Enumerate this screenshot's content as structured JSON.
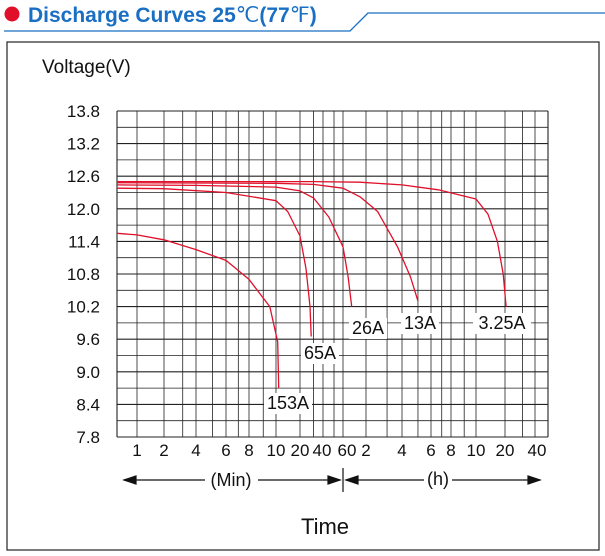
{
  "header": {
    "title": "Discharge Curves 25",
    "unit_c": "℃",
    "open_paren": "(",
    "temp_f": "77",
    "unit_f": "℉",
    "close_paren": ")",
    "accent_color": "#1a6fc4",
    "bullet_color": "#e0102a"
  },
  "chart_data": {
    "type": "line",
    "title": "Discharge Curves 25℃(77℉)",
    "ylabel": "Voltage(V)",
    "xlabel": "Time",
    "ylim": [
      7.8,
      13.8
    ],
    "y_ticks": [
      "13.8",
      "13.2",
      "12.6",
      "12.0",
      "11.4",
      "10.8",
      "10.2",
      "9.6",
      "9.0",
      "8.4",
      "7.8"
    ],
    "x_scale": "log",
    "x_ticks_min": [
      "1",
      "2",
      "4",
      "6",
      "8",
      "10",
      "20",
      "40",
      "60"
    ],
    "x_ticks_h": [
      "2",
      "4",
      "6",
      "8",
      "10",
      "20",
      "40"
    ],
    "x_unit_min": "(Min)",
    "x_unit_h": "(h)",
    "grid": true,
    "line_color": "#e0102a",
    "series": [
      {
        "name": "153A",
        "x_min": [
          0.25,
          1,
          2,
          4,
          6,
          8,
          9.5,
          10.5,
          10.8
        ],
        "y": [
          11.55,
          11.52,
          11.43,
          11.25,
          11.05,
          10.7,
          10.2,
          9.55,
          8.7
        ]
      },
      {
        "name": "65A",
        "x_min": [
          0.25,
          2,
          6,
          10,
          14,
          20,
          24,
          27,
          28
        ],
        "y": [
          12.38,
          12.37,
          12.3,
          12.15,
          11.95,
          11.5,
          10.9,
          10.2,
          9.65
        ]
      },
      {
        "name": "26A",
        "x_min": [
          0.25,
          4,
          10,
          20,
          30,
          45,
          60,
          70,
          78
        ],
        "y": [
          12.44,
          12.43,
          12.4,
          12.33,
          12.2,
          11.85,
          11.3,
          10.75,
          10.2
        ]
      },
      {
        "name": "13A",
        "x_min": [
          0.25,
          10,
          30,
          60,
          100,
          150,
          220,
          270,
          300
        ],
        "y": [
          12.48,
          12.47,
          12.45,
          12.38,
          12.22,
          11.95,
          11.3,
          10.75,
          10.3
        ]
      },
      {
        "name": "3.25A",
        "x_min": [
          0.25,
          30,
          100,
          240,
          400,
          600,
          800,
          1000,
          1150,
          1230
        ],
        "y": [
          12.5,
          12.5,
          12.49,
          12.44,
          12.35,
          12.18,
          11.9,
          11.4,
          10.8,
          10.2
        ]
      }
    ]
  }
}
